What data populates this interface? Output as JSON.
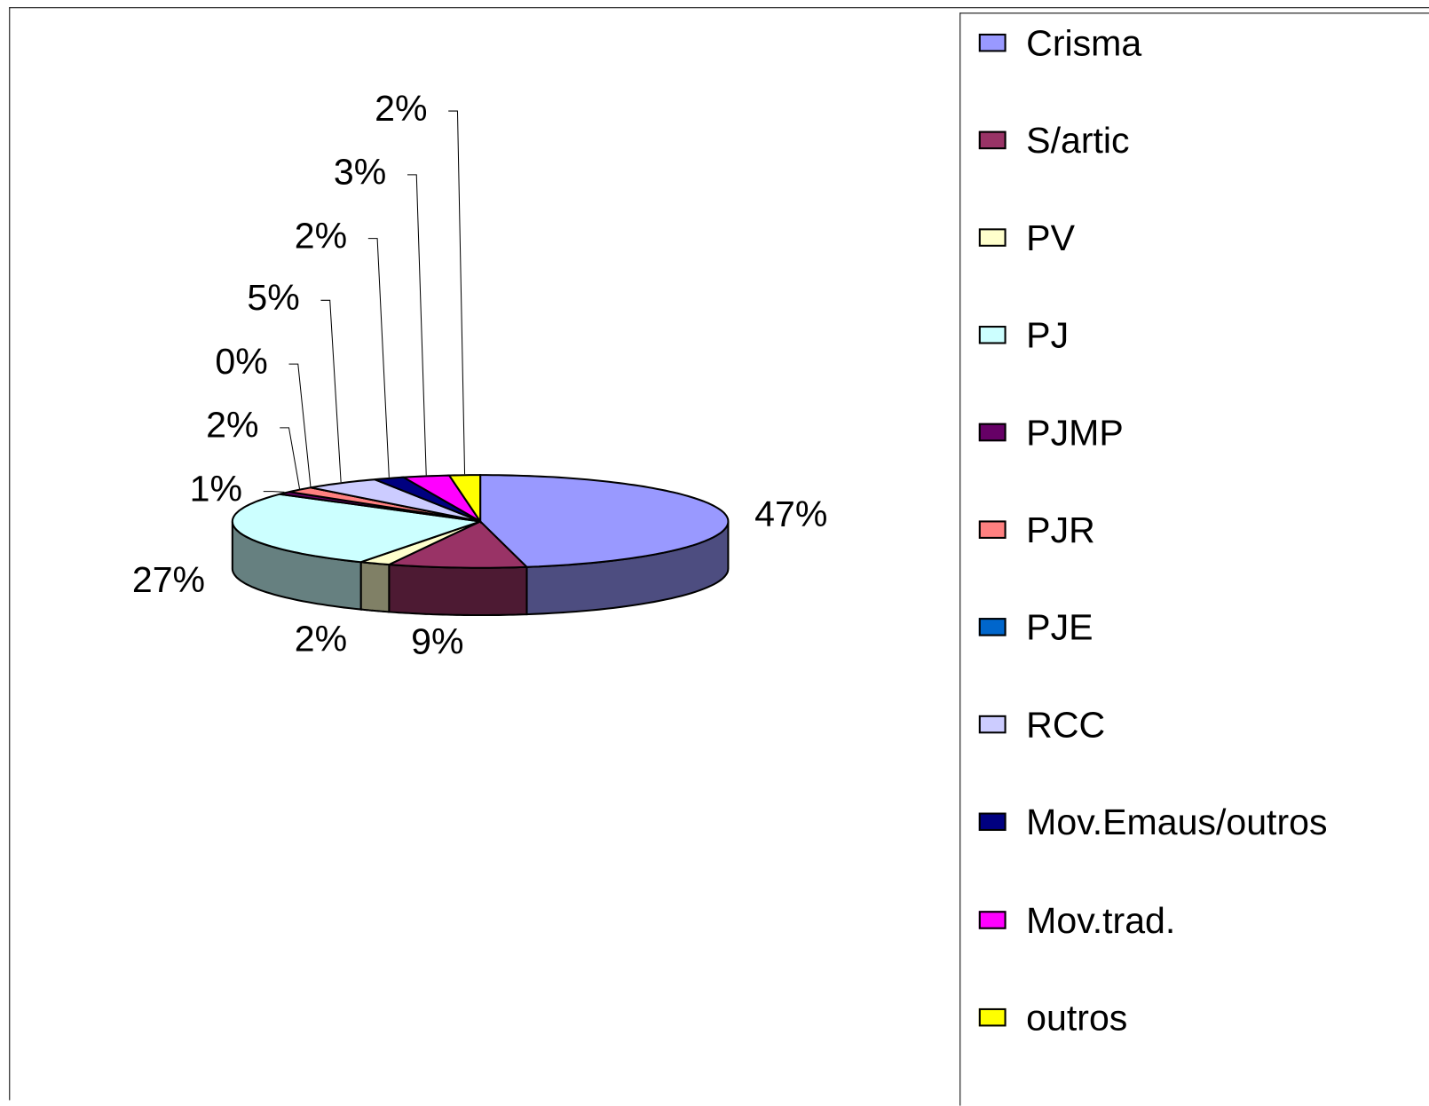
{
  "chart_data": {
    "type": "pie3d",
    "categories": [
      "Crisma",
      "S/artic",
      "PV",
      "PJ",
      "PJMP",
      "PJR",
      "PJE",
      "RCC",
      "Mov.Emaus/outros",
      "Mov.trad.",
      "outros"
    ],
    "values": [
      47,
      9,
      2,
      27,
      1,
      2,
      0,
      5,
      2,
      3,
      2
    ],
    "value_labels": [
      "47%",
      "9%",
      "2%",
      "27%",
      "1%",
      "2%",
      "0%",
      "5%",
      "2%",
      "3%",
      "2%"
    ],
    "colors": [
      "#9999ff",
      "#993366",
      "#ffffcc",
      "#ccffff",
      "#660066",
      "#ff8080",
      "#0066cc",
      "#ccccff",
      "#000080",
      "#ff00ff",
      "#ffff00"
    ],
    "legend": "right"
  }
}
